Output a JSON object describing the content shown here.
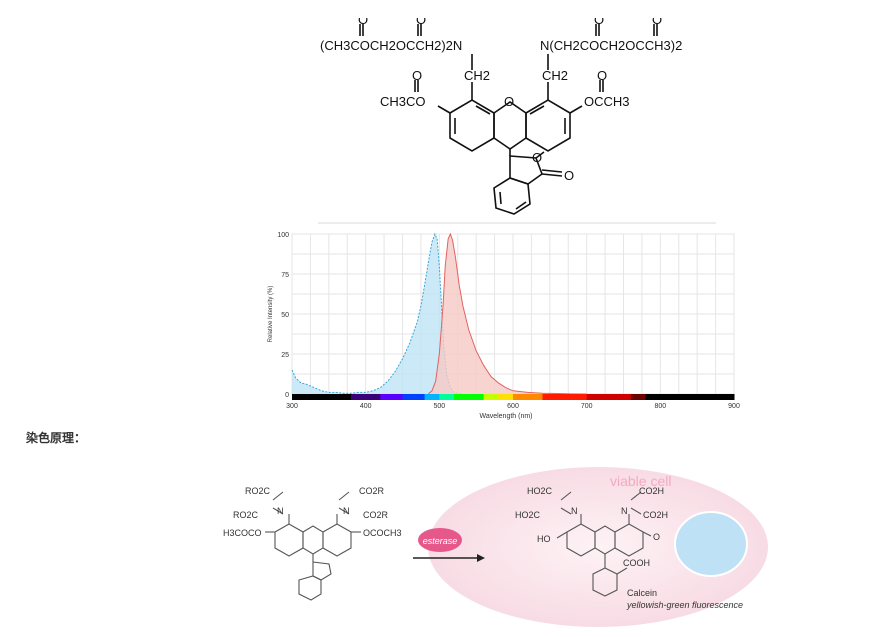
{
  "structure_top": {
    "left_group": "(CH3COCH2OCCH2)2N",
    "right_group": "N(CH2COCH2OCCH3)2",
    "ch2": "CH2",
    "left_ester": "CH3CO",
    "right_ester": "OCCH3",
    "o": "O"
  },
  "spectrum": {
    "ylabel": "Relative Intensity (%)",
    "xlabel": "Wavelength (nm)",
    "yticks": [
      "100",
      "75",
      "50",
      "25",
      "0"
    ],
    "xticks": [
      "300",
      "400",
      "500",
      "600",
      "700",
      "800",
      "900"
    ]
  },
  "chart_data": {
    "type": "area",
    "xlim": [
      300,
      900
    ],
    "ylim": [
      0,
      100
    ],
    "xlabel": "Wavelength (nm)",
    "ylabel": "Relative Intensity (%)",
    "grid": true,
    "series": [
      {
        "color": "#bfe3f5",
        "stroke": "#3aa5d6",
        "x": [
          300,
          305,
          312,
          320,
          330,
          340,
          350,
          360,
          370,
          380,
          390,
          400,
          410,
          420,
          430,
          440,
          450,
          460,
          470,
          475,
          480,
          485,
          490,
          494,
          497,
          500,
          503,
          506,
          510,
          515,
          520,
          530
        ],
        "y": [
          15,
          10,
          7,
          6,
          4,
          2,
          1,
          1,
          0.5,
          0.5,
          1,
          1,
          2,
          4,
          8,
          14,
          22,
          32,
          45,
          55,
          68,
          82,
          95,
          100,
          97,
          80,
          55,
          30,
          12,
          4,
          1,
          0
        ]
      },
      {
        "color": "#f6c9c6",
        "stroke": "#e06363",
        "x": [
          485,
          490,
          495,
          500,
          505,
          508,
          512,
          515,
          518,
          522,
          527,
          532,
          540,
          550,
          560,
          570,
          580,
          590,
          600,
          620,
          640,
          660,
          680,
          700
        ],
        "y": [
          0,
          2,
          8,
          25,
          55,
          80,
          97,
          100,
          96,
          85,
          68,
          55,
          40,
          27,
          18,
          11,
          7,
          4,
          2,
          1,
          0.5,
          0.3,
          0.1,
          0
        ]
      }
    ]
  },
  "section": {
    "heading": "染色原理："
  },
  "principle": {
    "left_ro2c_top": "RO2C",
    "left_ro2c_mid": "RO2C",
    "left_n": "N",
    "left_co2r": "CO2R",
    "left_n2": "N",
    "left_co2r2": "CO2R",
    "left_h3coco": "H3COCO",
    "left_ococh3": "OCOCH3",
    "arrow_label": "esterase",
    "cell_label": "viable cell",
    "right_ho2c_top": "HO2C",
    "right_ho2c_mid": "HO2C",
    "right_co2h": "CO2H",
    "right_co2h2": "CO2H",
    "right_n": "N",
    "right_n2": "N",
    "right_ho": "HO",
    "right_o": "O",
    "right_cooh": "COOH",
    "product_name": "Calcein",
    "product_desc": "yellowish-green fluorescence"
  }
}
